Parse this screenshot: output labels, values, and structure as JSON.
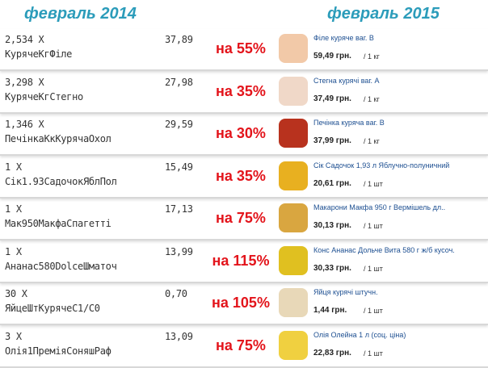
{
  "header": {
    "left": "февраль 2014",
    "right": "февраль 2015"
  },
  "rows": [
    {
      "qty": "2,534 X",
      "receipt_name": "КурячеКгФіле",
      "receipt_price": "37,89",
      "increase": "на 55%",
      "product": "Філе куряче ваг. В",
      "price": "59,49 грн.",
      "unit": "/ 1 кг"
    },
    {
      "qty": "3,298 X",
      "receipt_name": "КурячеКгСтегно",
      "receipt_price": "27,98",
      "increase": "на 35%",
      "product": "Стегна курячі ваг. А",
      "price": "37,49 грн.",
      "unit": "/ 1 кг"
    },
    {
      "qty": "1,346 X",
      "receipt_name": "ПечінкаКкКурячаОхол",
      "receipt_price": "29,59",
      "increase": "на 30%",
      "product": "Печінка куряча ваг. В",
      "price": "37,99 грн.",
      "unit": "/ 1 кг"
    },
    {
      "qty": "1 X",
      "receipt_name": "Сік1.93СадочокЯблПол",
      "receipt_price": "15,49",
      "increase": "на 35%",
      "product": "Сік Садочок 1,93 л Яблучно-полуничний",
      "price": "20,61 грн.",
      "unit": "/ 1 шт"
    },
    {
      "qty": "1 X",
      "receipt_name": "Мак950МакфаСпагетті",
      "receipt_price": "17,13",
      "increase": "на 75%",
      "product": "Макарони Макфа 950 г Вермішель дл..",
      "price": "30,13 грн.",
      "unit": "/ 1 шт"
    },
    {
      "qty": "1 X",
      "receipt_name": "Ананас580DolceШматоч",
      "receipt_price": "13,99",
      "increase": "на 115%",
      "product": "Конс Ананас Дольче Вита 580 г ж/б кусоч.",
      "price": "30,33 грн.",
      "unit": "/ 1 шт"
    },
    {
      "qty": "30 X",
      "receipt_name": "ЯйцеШтКурячеС1/С0",
      "receipt_price": "0,70",
      "increase": "на 105%",
      "product": "Яйця курячі штучн.",
      "price": "1,44 грн.",
      "unit": "/ 1 шт"
    },
    {
      "qty": "3 X",
      "receipt_name": "Олія1ПреміяСоняшРаф",
      "receipt_price": "13,09",
      "increase": "на 75%",
      "product": "Олія Олейна 1 л (соц. ціна)",
      "price": "22,83 грн.",
      "unit": "/ 1 шт"
    }
  ]
}
